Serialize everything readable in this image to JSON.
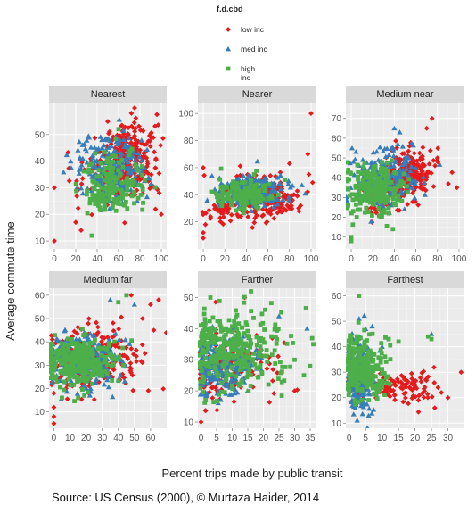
{
  "chart_data": {
    "type": "scatter",
    "xlabel": "Percent trips made by public transit",
    "ylabel": "Average commute time",
    "caption": "Source: US Census (2000), © Murtaza  Haider, 2014",
    "legend": {
      "title": "f.d.cbd",
      "placement": "top-center",
      "entries": [
        {
          "label_lines": [
            "low inc"
          ],
          "shape": "diamond",
          "color": "#e41a1c"
        },
        {
          "label_lines": [
            "med inc"
          ],
          "shape": "triangle",
          "color": "#377eb8"
        },
        {
          "label_lines": [
            "high",
            "inc"
          ],
          "shape": "square",
          "color": "#4daf4a"
        }
      ]
    },
    "grid": true,
    "panels": [
      {
        "title": "Nearest",
        "xlim": [
          -5,
          105
        ],
        "ylim": [
          7,
          62
        ],
        "xticks": [
          0,
          20,
          40,
          60,
          80,
          100
        ],
        "yticks": [
          10,
          20,
          30,
          40,
          50
        ],
        "clusters": {
          "low": [
            [
              70,
              42,
              12,
              7,
              260
            ],
            [
              45,
              35,
              15,
              6,
              60
            ]
          ],
          "med": [
            [
              55,
              38,
              16,
              6,
              230
            ]
          ],
          "high": [
            [
              55,
              32,
              15,
              6,
              150
            ],
            [
              45,
              25,
              8,
              2,
              35
            ]
          ]
        },
        "extra": {
          "low": [
            [
              0,
              30
            ],
            [
              0,
              10
            ],
            [
              20,
              17
            ],
            [
              25,
              14
            ],
            [
              80,
              33
            ],
            [
              98,
              28
            ],
            [
              100,
              20
            ],
            [
              75,
              60
            ],
            [
              72,
              58
            ]
          ],
          "med": [],
          "high": [
            [
              35,
              12
            ],
            [
              60,
              52
            ]
          ]
        }
      },
      {
        "title": "Nearer",
        "xlim": [
          -5,
          105
        ],
        "ylim": [
          0,
          108
        ],
        "xticks": [
          0,
          20,
          40,
          60,
          80,
          100
        ],
        "yticks": [
          20,
          40,
          60,
          80,
          100
        ],
        "clusters": {
          "low": [
            [
              60,
              38,
              17,
              8,
              220
            ],
            [
              20,
              30,
              8,
              5,
              40
            ]
          ],
          "med": [
            [
              45,
              42,
              15,
              6,
              240
            ]
          ],
          "high": [
            [
              40,
              40,
              15,
              6,
              130
            ]
          ]
        },
        "extra": {
          "low": [
            [
              0,
              60
            ],
            [
              0,
              12
            ],
            [
              0,
              8
            ],
            [
              2,
              18
            ],
            [
              100,
              100
            ],
            [
              97,
              70
            ],
            [
              98,
              55
            ],
            [
              80,
              63
            ]
          ],
          "med": [],
          "high": []
        }
      },
      {
        "title": "Medium near",
        "xlim": [
          -5,
          105
        ],
        "ylim": [
          4,
          78
        ],
        "xticks": [
          0,
          20,
          40,
          60,
          80,
          100
        ],
        "yticks": [
          10,
          20,
          30,
          40,
          50,
          60,
          70
        ],
        "clusters": {
          "low": [
            [
              55,
              42,
              12,
              6,
              200
            ],
            [
              30,
              30,
              10,
              5,
              60
            ]
          ],
          "med": [
            [
              30,
              40,
              15,
              7,
              230
            ]
          ],
          "high": [
            [
              22,
              35,
              14,
              7,
              230
            ]
          ]
        },
        "extra": {
          "low": [
            [
              98,
              35
            ],
            [
              75,
              70
            ],
            [
              70,
              65
            ],
            [
              80,
              50
            ]
          ],
          "med": [
            [
              40,
              65
            ],
            [
              45,
              63
            ]
          ],
          "high": [
            [
              0,
              10
            ],
            [
              0,
              8
            ]
          ]
        }
      },
      {
        "title": "Medium far",
        "xlim": [
          -3,
          70
        ],
        "ylim": [
          3,
          63
        ],
        "xticks": [
          0,
          10,
          20,
          30,
          40,
          50,
          60
        ],
        "yticks": [
          10,
          20,
          30,
          40,
          50,
          60
        ],
        "clusters": {
          "low": [
            [
              25,
              32,
              15,
              7,
              200
            ]
          ],
          "med": [
            [
              18,
              32,
              12,
              6,
              230
            ]
          ],
          "high": [
            [
              14,
              31,
              11,
              5,
              320
            ]
          ]
        },
        "extra": {
          "low": [
            [
              0,
              5
            ],
            [
              0,
              8
            ],
            [
              0,
              12
            ],
            [
              0,
              18
            ],
            [
              65,
              58
            ],
            [
              60,
              56
            ],
            [
              48,
              60
            ],
            [
              55,
              50
            ],
            [
              62,
              45
            ]
          ],
          "med": [
            [
              35,
              58
            ],
            [
              50,
              56
            ]
          ],
          "high": [
            [
              45,
              60
            ],
            [
              40,
              57
            ]
          ]
        }
      },
      {
        "title": "Farther",
        "xlim": [
          -1,
          37
        ],
        "ylim": [
          8,
          53
        ],
        "xticks": [
          0,
          5,
          10,
          15,
          20,
          25,
          30,
          35
        ],
        "yticks": [
          10,
          20,
          30,
          40,
          50
        ],
        "clusters": {
          "low": [
            [
              8,
              28,
              7,
              6,
              150
            ]
          ],
          "med": [
            [
              6,
              28,
              6,
              5,
              230
            ]
          ],
          "high": [
            [
              10,
              33,
              8,
              6,
              320
            ]
          ]
        },
        "extra": {
          "low": [
            [
              0,
              10
            ],
            [
              14,
              50
            ],
            [
              30,
              20
            ]
          ],
          "med": [
            [
              25,
              44
            ],
            [
              34,
              40
            ]
          ],
          "high": [
            [
              36,
              35
            ],
            [
              33,
              25
            ],
            [
              16,
              52
            ],
            [
              3,
              50
            ],
            [
              30,
              30
            ]
          ]
        }
      },
      {
        "title": "Farthest",
        "xlim": [
          -1,
          35
        ],
        "ylim": [
          8,
          63
        ],
        "xticks": [
          0,
          5,
          10,
          15,
          20,
          25,
          30
        ],
        "yticks": [
          10,
          20,
          30,
          40,
          50,
          60
        ],
        "clusters": {
          "low": [
            [
              12,
              24,
              8,
              3,
              140
            ]
          ],
          "med": [
            [
              3,
              28,
              2,
              7,
              200
            ]
          ],
          "high": [
            [
              4,
              32,
              4,
              6,
              280
            ]
          ]
        },
        "extra": {
          "low": [
            [
              34,
              30
            ],
            [
              30,
              20
            ],
            [
              26,
              16
            ],
            [
              27,
              24
            ],
            [
              28,
              22
            ]
          ],
          "med": [
            [
              3,
              51
            ],
            [
              5,
              47
            ],
            [
              7,
              48
            ],
            [
              10,
              40
            ],
            [
              25,
              45
            ]
          ],
          "high": [
            [
              3,
              60
            ],
            [
              24,
              44
            ],
            [
              25,
              43
            ],
            [
              12,
              43
            ],
            [
              15,
              42
            ]
          ]
        }
      }
    ]
  }
}
